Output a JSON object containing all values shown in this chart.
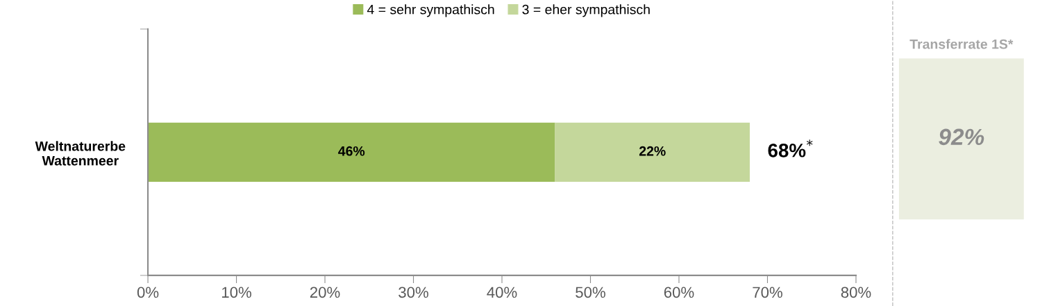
{
  "chart_data": [
    {
      "type": "bar",
      "orientation": "horizontal",
      "stacked": true,
      "categories": [
        "Weltnaturerbe\nWattenmeer"
      ],
      "series": [
        {
          "name": "4 = sehr sympathisch",
          "color": "#9bbb59",
          "values": [
            46
          ],
          "value_labels": [
            "46%"
          ]
        },
        {
          "name": "3 = eher sympathisch",
          "color": "#c4d79b",
          "values": [
            22
          ],
          "value_labels": [
            "22%"
          ]
        }
      ],
      "totals": [
        "68%$^{*}$"
      ],
      "xlim": [
        0,
        80
      ],
      "xticks": [
        {
          "value": 0,
          "label": "0%"
        },
        {
          "value": 10,
          "label": "10%"
        },
        {
          "value": 20,
          "label": "20%"
        },
        {
          "value": 30,
          "label": "30%"
        },
        {
          "value": 40,
          "label": "40%"
        },
        {
          "value": 50,
          "label": "50%"
        },
        {
          "value": 60,
          "label": "60%"
        },
        {
          "value": 70,
          "label": "70%"
        },
        {
          "value": 80,
          "label": "80%"
        }
      ],
      "grid": false,
      "legend": "top"
    },
    {
      "type": "other",
      "title": "Transferrate 1S*",
      "annotations": [
        "92%"
      ]
    }
  ]
}
